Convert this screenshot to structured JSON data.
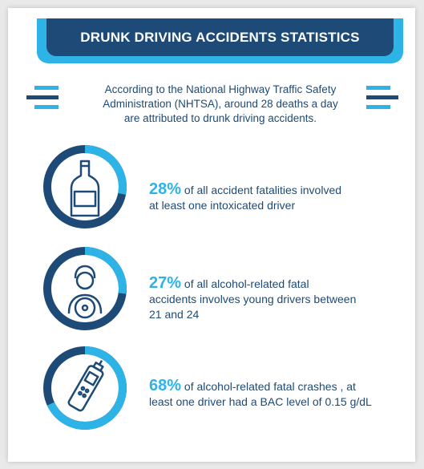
{
  "title": "DRUNK DRIVING ACCIDENTS STATISTICS",
  "intro": {
    "line1": "According to the National Highway Traffic Safety",
    "line2": "Administration (NHTSA), around 28 deaths a day",
    "line3": "are attributed to drunk driving accidents."
  },
  "stats": [
    {
      "percent": "28%",
      "value": 28,
      "icon": "bottle-icon",
      "line1": " of all accident fatalities involved",
      "line2": "at least one intoxicated driver",
      "line3": ""
    },
    {
      "percent": "27%",
      "value": 27,
      "icon": "driver-icon",
      "line1": " of all alcohol-related fatal",
      "line2": "accidents involves young drivers between",
      "line3": "21 and 24"
    },
    {
      "percent": "68%",
      "value": 68,
      "icon": "breathalyzer-icon",
      "line1": " of alcohol-related fatal crashes , at",
      "line2": "least one driver had a BAC level of 0.15 g/dL",
      "line3": ""
    }
  ],
  "colors": {
    "navy": "#1d4a76",
    "accent": "#2eb3e6"
  }
}
